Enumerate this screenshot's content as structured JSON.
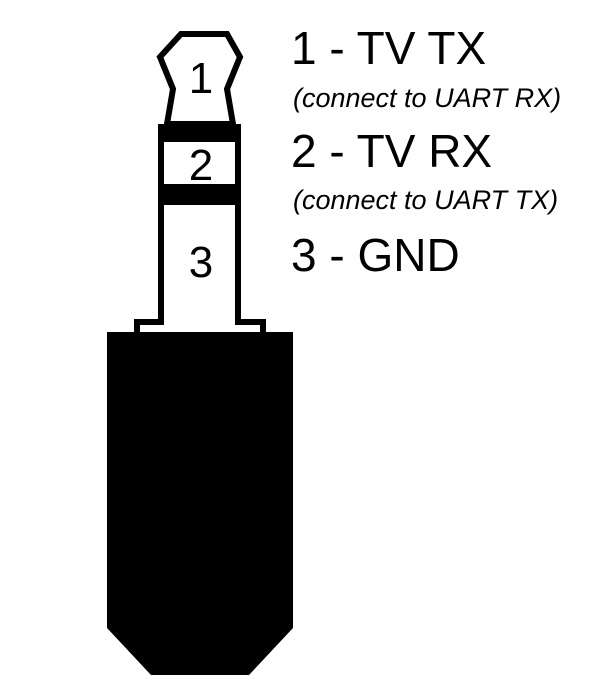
{
  "segments": [
    {
      "number": "1"
    },
    {
      "number": "2"
    },
    {
      "number": "3"
    }
  ],
  "pins": [
    {
      "label": "1 - TV TX",
      "note": "(connect to UART RX)"
    },
    {
      "label": "2 - TV RX",
      "note": "(connect to UART TX)"
    },
    {
      "label": "3 - GND"
    }
  ],
  "colors": {
    "ink": "#000000",
    "background": "#ffffff"
  }
}
